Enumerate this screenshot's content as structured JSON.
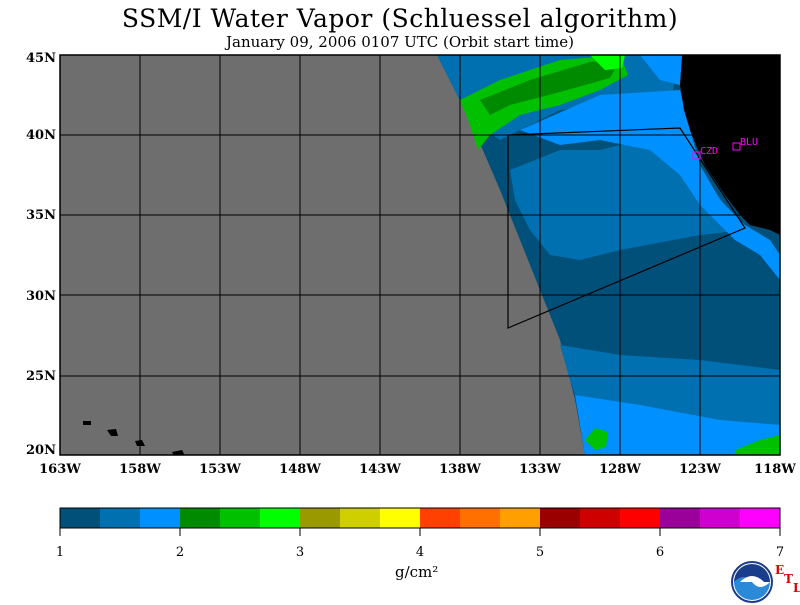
{
  "title": "SSM/I Water Vapor (Schluessel algorithm)",
  "subtitle": "January 09, 2006  0107 UTC  (Orbit start time)",
  "lat_labels": [
    "45N",
    "40N",
    "35N",
    "30N",
    "25N",
    "20N"
  ],
  "lon_labels": [
    "163W",
    "158W",
    "153W",
    "148W",
    "143W",
    "138W",
    "133W",
    "128W",
    "123W",
    "118W"
  ],
  "colorbar": {
    "ticks": [
      "1",
      "2",
      "3",
      "4",
      "5",
      "6",
      "7"
    ],
    "unit": "g/cm²",
    "colors": [
      "#00507a",
      "#0070b0",
      "#0090ff",
      "#008a00",
      "#00c000",
      "#00ff00",
      "#9a9a00",
      "#cfcf00",
      "#ffff00",
      "#ff4000",
      "#ff7000",
      "#ffa000",
      "#9a0000",
      "#cf0000",
      "#ff0000",
      "#9a009a",
      "#cf00cf",
      "#ff00ff"
    ]
  },
  "stations": [
    {
      "label": "CZD"
    },
    {
      "label": "BLU"
    }
  ],
  "colors": {
    "nodata": "#6e6e6e",
    "land": "#000000",
    "deep": "#00507a",
    "mid": "#0070b0",
    "bright": "#0090ff",
    "green": "#00c000",
    "lime": "#00ff00",
    "station": "#ff00ff"
  },
  "logo": {
    "agency": "NOAA",
    "lab": "ETL"
  }
}
